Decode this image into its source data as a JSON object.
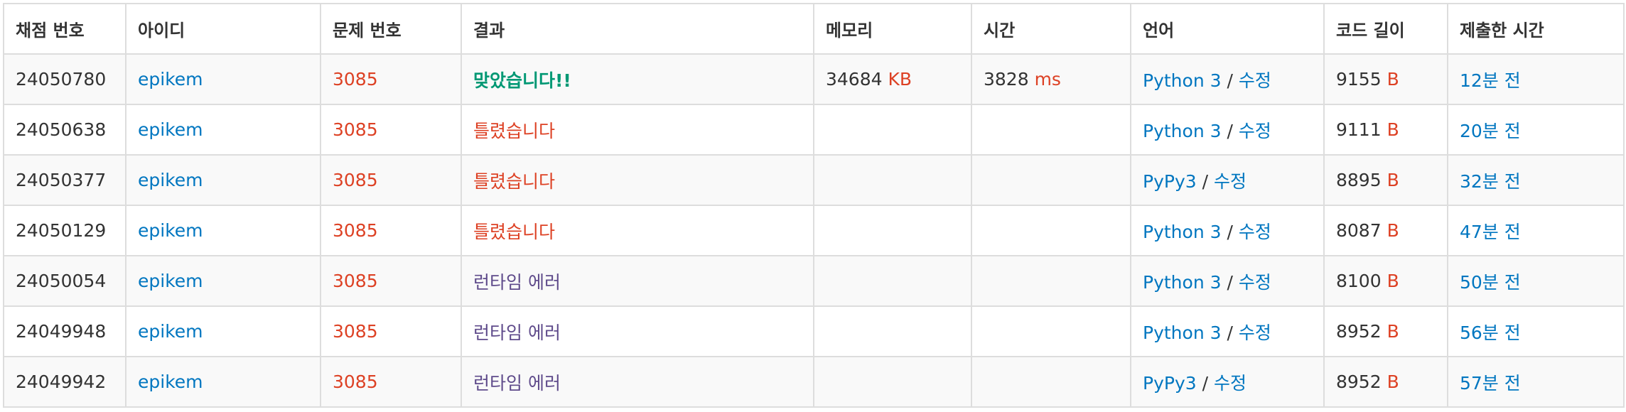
{
  "headers": [
    "채점 번호",
    "아이디",
    "문제 번호",
    "결과",
    "메모리",
    "시간",
    "언어",
    "코드 길이",
    "제출한 시간"
  ],
  "colors": {
    "link": "#0076c0",
    "accepted": "#009874",
    "wrong": "#dd4124",
    "runtime_error": "#5f4b8b",
    "border": "#dddddd",
    "stripe": "#f9f9f9"
  },
  "units": {
    "memory": "KB",
    "time": "ms",
    "code": "B"
  },
  "rows": [
    {
      "id": "24050780",
      "user": "epikem",
      "problem": "3085",
      "result": "맞았습니다!!",
      "result_type": "accepted",
      "memory": "34684",
      "time": "3828",
      "lang": "Python 3",
      "edit": "수정",
      "code_length": "9155",
      "submitted": "12분 전"
    },
    {
      "id": "24050638",
      "user": "epikem",
      "problem": "3085",
      "result": "틀렸습니다",
      "result_type": "wrong",
      "memory": "",
      "time": "",
      "lang": "Python 3",
      "edit": "수정",
      "code_length": "9111",
      "submitted": "20분 전"
    },
    {
      "id": "24050377",
      "user": "epikem",
      "problem": "3085",
      "result": "틀렸습니다",
      "result_type": "wrong",
      "memory": "",
      "time": "",
      "lang": "PyPy3",
      "edit": "수정",
      "code_length": "8895",
      "submitted": "32분 전"
    },
    {
      "id": "24050129",
      "user": "epikem",
      "problem": "3085",
      "result": "틀렸습니다",
      "result_type": "wrong",
      "memory": "",
      "time": "",
      "lang": "Python 3",
      "edit": "수정",
      "code_length": "8087",
      "submitted": "47분 전"
    },
    {
      "id": "24050054",
      "user": "epikem",
      "problem": "3085",
      "result": "런타임 에러",
      "result_type": "runtime_error",
      "memory": "",
      "time": "",
      "lang": "Python 3",
      "edit": "수정",
      "code_length": "8100",
      "submitted": "50분 전"
    },
    {
      "id": "24049948",
      "user": "epikem",
      "problem": "3085",
      "result": "런타임 에러",
      "result_type": "runtime_error",
      "memory": "",
      "time": "",
      "lang": "Python 3",
      "edit": "수정",
      "code_length": "8952",
      "submitted": "56분 전"
    },
    {
      "id": "24049942",
      "user": "epikem",
      "problem": "3085",
      "result": "런타임 에러",
      "result_type": "runtime_error",
      "memory": "",
      "time": "",
      "lang": "PyPy3",
      "edit": "수정",
      "code_length": "8952",
      "submitted": "57분 전"
    }
  ]
}
